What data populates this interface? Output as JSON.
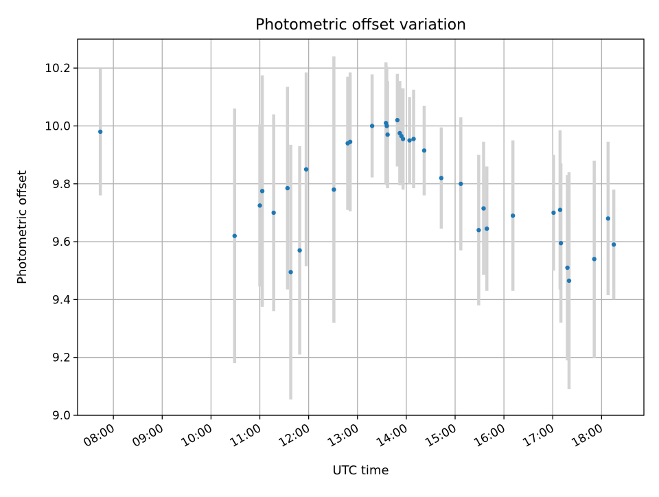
{
  "chart_data": {
    "type": "scatter",
    "title": "Photometric offset variation",
    "xlabel": "UTC time",
    "ylabel": "Photometric offset",
    "x_ticks": [
      "08:00",
      "09:00",
      "10:00",
      "11:00",
      "12:00",
      "13:00",
      "14:00",
      "15:00",
      "16:00",
      "17:00",
      "18:00"
    ],
    "y_ticks": [
      "9.0",
      "9.2",
      "9.4",
      "9.6",
      "9.8",
      "10.0",
      "10.2"
    ],
    "xlim": [
      "07:16",
      "18:52"
    ],
    "ylim": [
      9.0,
      10.3
    ],
    "grid": true,
    "legend": "none",
    "marker_color": "#1f77b4",
    "errorbar_color": "#d3d3d3",
    "points": [
      {
        "x": "07:44",
        "y": 9.98,
        "err": 0.22
      },
      {
        "x": "10:29",
        "y": 9.62,
        "err": 0.44
      },
      {
        "x": "11:00",
        "y": 9.725,
        "err": 0.28
      },
      {
        "x": "11:03",
        "y": 9.775,
        "err": 0.4
      },
      {
        "x": "11:17",
        "y": 9.7,
        "err": 0.34
      },
      {
        "x": "11:34",
        "y": 9.785,
        "err": 0.35
      },
      {
        "x": "11:38",
        "y": 9.495,
        "err": 0.44
      },
      {
        "x": "11:49",
        "y": 9.57,
        "err": 0.36
      },
      {
        "x": "11:57",
        "y": 9.85,
        "err": 0.335
      },
      {
        "x": "12:31",
        "y": 9.78,
        "err": 0.46
      },
      {
        "x": "12:48",
        "y": 9.94,
        "err": 0.23
      },
      {
        "x": "12:51",
        "y": 9.945,
        "err": 0.24
      },
      {
        "x": "13:18",
        "y": 10.0,
        "err": 0.178
      },
      {
        "x": "13:35",
        "y": 10.01,
        "err": 0.21
      },
      {
        "x": "13:36",
        "y": 10.0,
        "err": 0.205
      },
      {
        "x": "13:37",
        "y": 9.97,
        "err": 0.185
      },
      {
        "x": "13:49",
        "y": 10.02,
        "err": 0.16
      },
      {
        "x": "13:52",
        "y": 9.975,
        "err": 0.18
      },
      {
        "x": "13:54",
        "y": 9.965,
        "err": 0.165
      },
      {
        "x": "13:56",
        "y": 9.955,
        "err": 0.175
      },
      {
        "x": "14:04",
        "y": 9.95,
        "err": 0.15
      },
      {
        "x": "14:09",
        "y": 9.955,
        "err": 0.17
      },
      {
        "x": "14:22",
        "y": 9.915,
        "err": 0.155
      },
      {
        "x": "14:43",
        "y": 9.82,
        "err": 0.175
      },
      {
        "x": "15:07",
        "y": 9.8,
        "err": 0.23
      },
      {
        "x": "15:29",
        "y": 9.64,
        "err": 0.26
      },
      {
        "x": "15:35",
        "y": 9.715,
        "err": 0.23
      },
      {
        "x": "15:39",
        "y": 9.645,
        "err": 0.215
      },
      {
        "x": "16:11",
        "y": 9.69,
        "err": 0.26
      },
      {
        "x": "17:01",
        "y": 9.7,
        "err": 0.2
      },
      {
        "x": "17:09",
        "y": 9.71,
        "err": 0.275
      },
      {
        "x": "17:10",
        "y": 9.595,
        "err": 0.275
      },
      {
        "x": "17:18",
        "y": 9.51,
        "err": 0.32
      },
      {
        "x": "17:20",
        "y": 9.465,
        "err": 0.375
      },
      {
        "x": "17:51",
        "y": 9.54,
        "err": 0.34
      },
      {
        "x": "18:08",
        "y": 9.68,
        "err": 0.265
      },
      {
        "x": "18:15",
        "y": 9.59,
        "err": 0.19
      }
    ]
  }
}
